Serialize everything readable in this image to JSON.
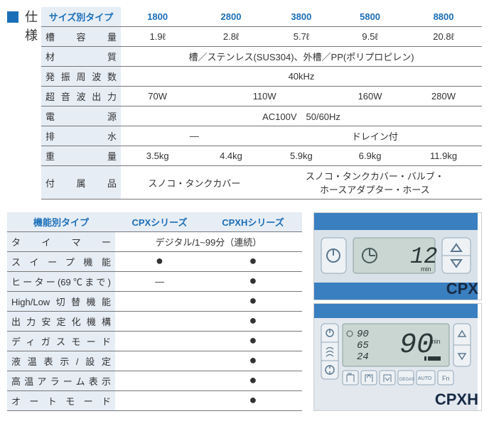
{
  "spec": {
    "title": "仕様",
    "header": [
      "サイズ別タイプ",
      "1800",
      "2800",
      "3800",
      "5800",
      "8800"
    ],
    "rows": [
      {
        "label": "槽容量",
        "cells": [
          {
            "t": "1.9ℓ",
            "span": 1
          },
          {
            "t": "2.8ℓ",
            "span": 1
          },
          {
            "t": "5.7ℓ",
            "span": 1
          },
          {
            "t": "9.5ℓ",
            "span": 1
          },
          {
            "t": "20.8ℓ",
            "span": 1
          }
        ]
      },
      {
        "label": "材質",
        "cells": [
          {
            "t": "槽／ステンレス(SUS304)、外槽／PP(ポリプロピレン)",
            "span": 5
          }
        ]
      },
      {
        "label": "発振周波数",
        "cells": [
          {
            "t": "40kHz",
            "span": 5
          }
        ]
      },
      {
        "label": "超音波出力",
        "cells": [
          {
            "t": "70W",
            "span": 1
          },
          {
            "t": "110W",
            "span": 2
          },
          {
            "t": "160W",
            "span": 1
          },
          {
            "t": "280W",
            "span": 1
          }
        ]
      },
      {
        "label": "電源",
        "cells": [
          {
            "t": "AC100V　50/60Hz",
            "span": 5
          }
        ]
      },
      {
        "label": "排水",
        "cells": [
          {
            "t": "―",
            "span": 2
          },
          {
            "t": "ドレイン付",
            "span": 3
          }
        ]
      },
      {
        "label": "重量",
        "cells": [
          {
            "t": "3.5kg",
            "span": 1
          },
          {
            "t": "4.4kg",
            "span": 1
          },
          {
            "t": "5.9kg",
            "span": 1
          },
          {
            "t": "6.9kg",
            "span": 1
          },
          {
            "t": "11.9kg",
            "span": 1
          }
        ]
      },
      {
        "label": "付属品",
        "cells": [
          {
            "t": "スノコ・タンクカバー",
            "span": 2
          },
          {
            "t": "スノコ・タンクカバー・バルブ・\nホースアダプター・ホース",
            "span": 3
          }
        ]
      }
    ]
  },
  "func": {
    "header": [
      "機能別タイプ",
      "CPXシリーズ",
      "CPXHシリーズ"
    ],
    "rows": [
      {
        "label": "タイマー",
        "cells": [
          {
            "t": "デジタル/1~99分（連続）",
            "span": 2
          }
        ]
      },
      {
        "label": "スイープ機能",
        "cells": [
          {
            "t": "●",
            "span": 1
          },
          {
            "t": "●",
            "span": 1
          }
        ]
      },
      {
        "label": "ヒーター(69℃まで)",
        "cells": [
          {
            "t": "―",
            "span": 1
          },
          {
            "t": "●",
            "span": 1
          }
        ]
      },
      {
        "label": "High/Low切替機能",
        "cells": [
          {
            "t": "",
            "span": 1
          },
          {
            "t": "●",
            "span": 1
          }
        ]
      },
      {
        "label": "出力安定化機構",
        "cells": [
          {
            "t": "",
            "span": 1
          },
          {
            "t": "●",
            "span": 1
          }
        ]
      },
      {
        "label": "ディガスモード",
        "cells": [
          {
            "t": "",
            "span": 1
          },
          {
            "t": "●",
            "span": 1
          }
        ]
      },
      {
        "label": "液温表示/設定",
        "cells": [
          {
            "t": "",
            "span": 1
          },
          {
            "t": "●",
            "span": 1
          }
        ]
      },
      {
        "label": "高温アラーム表示",
        "cells": [
          {
            "t": "",
            "span": 1
          },
          {
            "t": "●",
            "span": 1
          }
        ]
      },
      {
        "label": "オートモード",
        "cells": [
          {
            "t": "",
            "span": 1
          },
          {
            "t": "●",
            "span": 1
          }
        ]
      }
    ]
  },
  "devices": {
    "cpx": {
      "label": "CPX",
      "display": "12",
      "unit": "min"
    },
    "cpxh": {
      "label": "CPXH",
      "display": "90",
      "unit": "min",
      "temp1": "90",
      "temp2": "65",
      "temp3": "24"
    }
  },
  "colors": {
    "brand_blue": "#1a6eb8",
    "panel_blue": "#3a7fbf",
    "lcd": "#c9d6d1",
    "header_bg": "#e6edf5"
  }
}
